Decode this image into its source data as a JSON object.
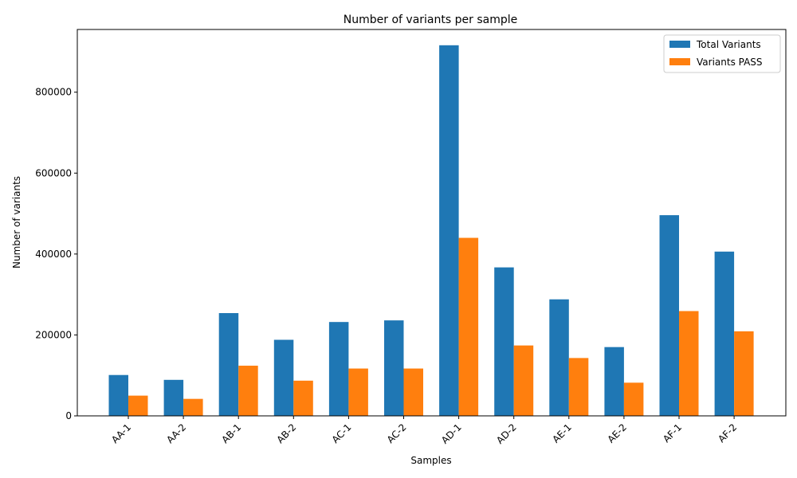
{
  "chart_data": {
    "type": "bar",
    "title": "Number of variants per sample",
    "xlabel": "Samples",
    "ylabel": "Number of variants",
    "categories": [
      "AA-1",
      "AA-2",
      "AB-1",
      "AB-2",
      "AC-1",
      "AC-2",
      "AD-1",
      "AD-2",
      "AE-1",
      "AE-2",
      "AF-1",
      "AF-2"
    ],
    "series": [
      {
        "name": "Total Variants",
        "color": "#1f77b4",
        "values": [
          101000,
          89000,
          254000,
          188000,
          232000,
          236000,
          916000,
          367000,
          288000,
          170000,
          496000,
          406000
        ]
      },
      {
        "name": "Variants PASS",
        "color": "#ff7f0e",
        "values": [
          50000,
          42000,
          124000,
          87000,
          117000,
          117000,
          440000,
          174000,
          143000,
          82000,
          259000,
          209000
        ]
      }
    ],
    "ylim": [
      0,
      955000
    ],
    "yticks": [
      0,
      200000,
      400000,
      600000,
      800000
    ],
    "grid": false,
    "legend_position": "top-right"
  }
}
